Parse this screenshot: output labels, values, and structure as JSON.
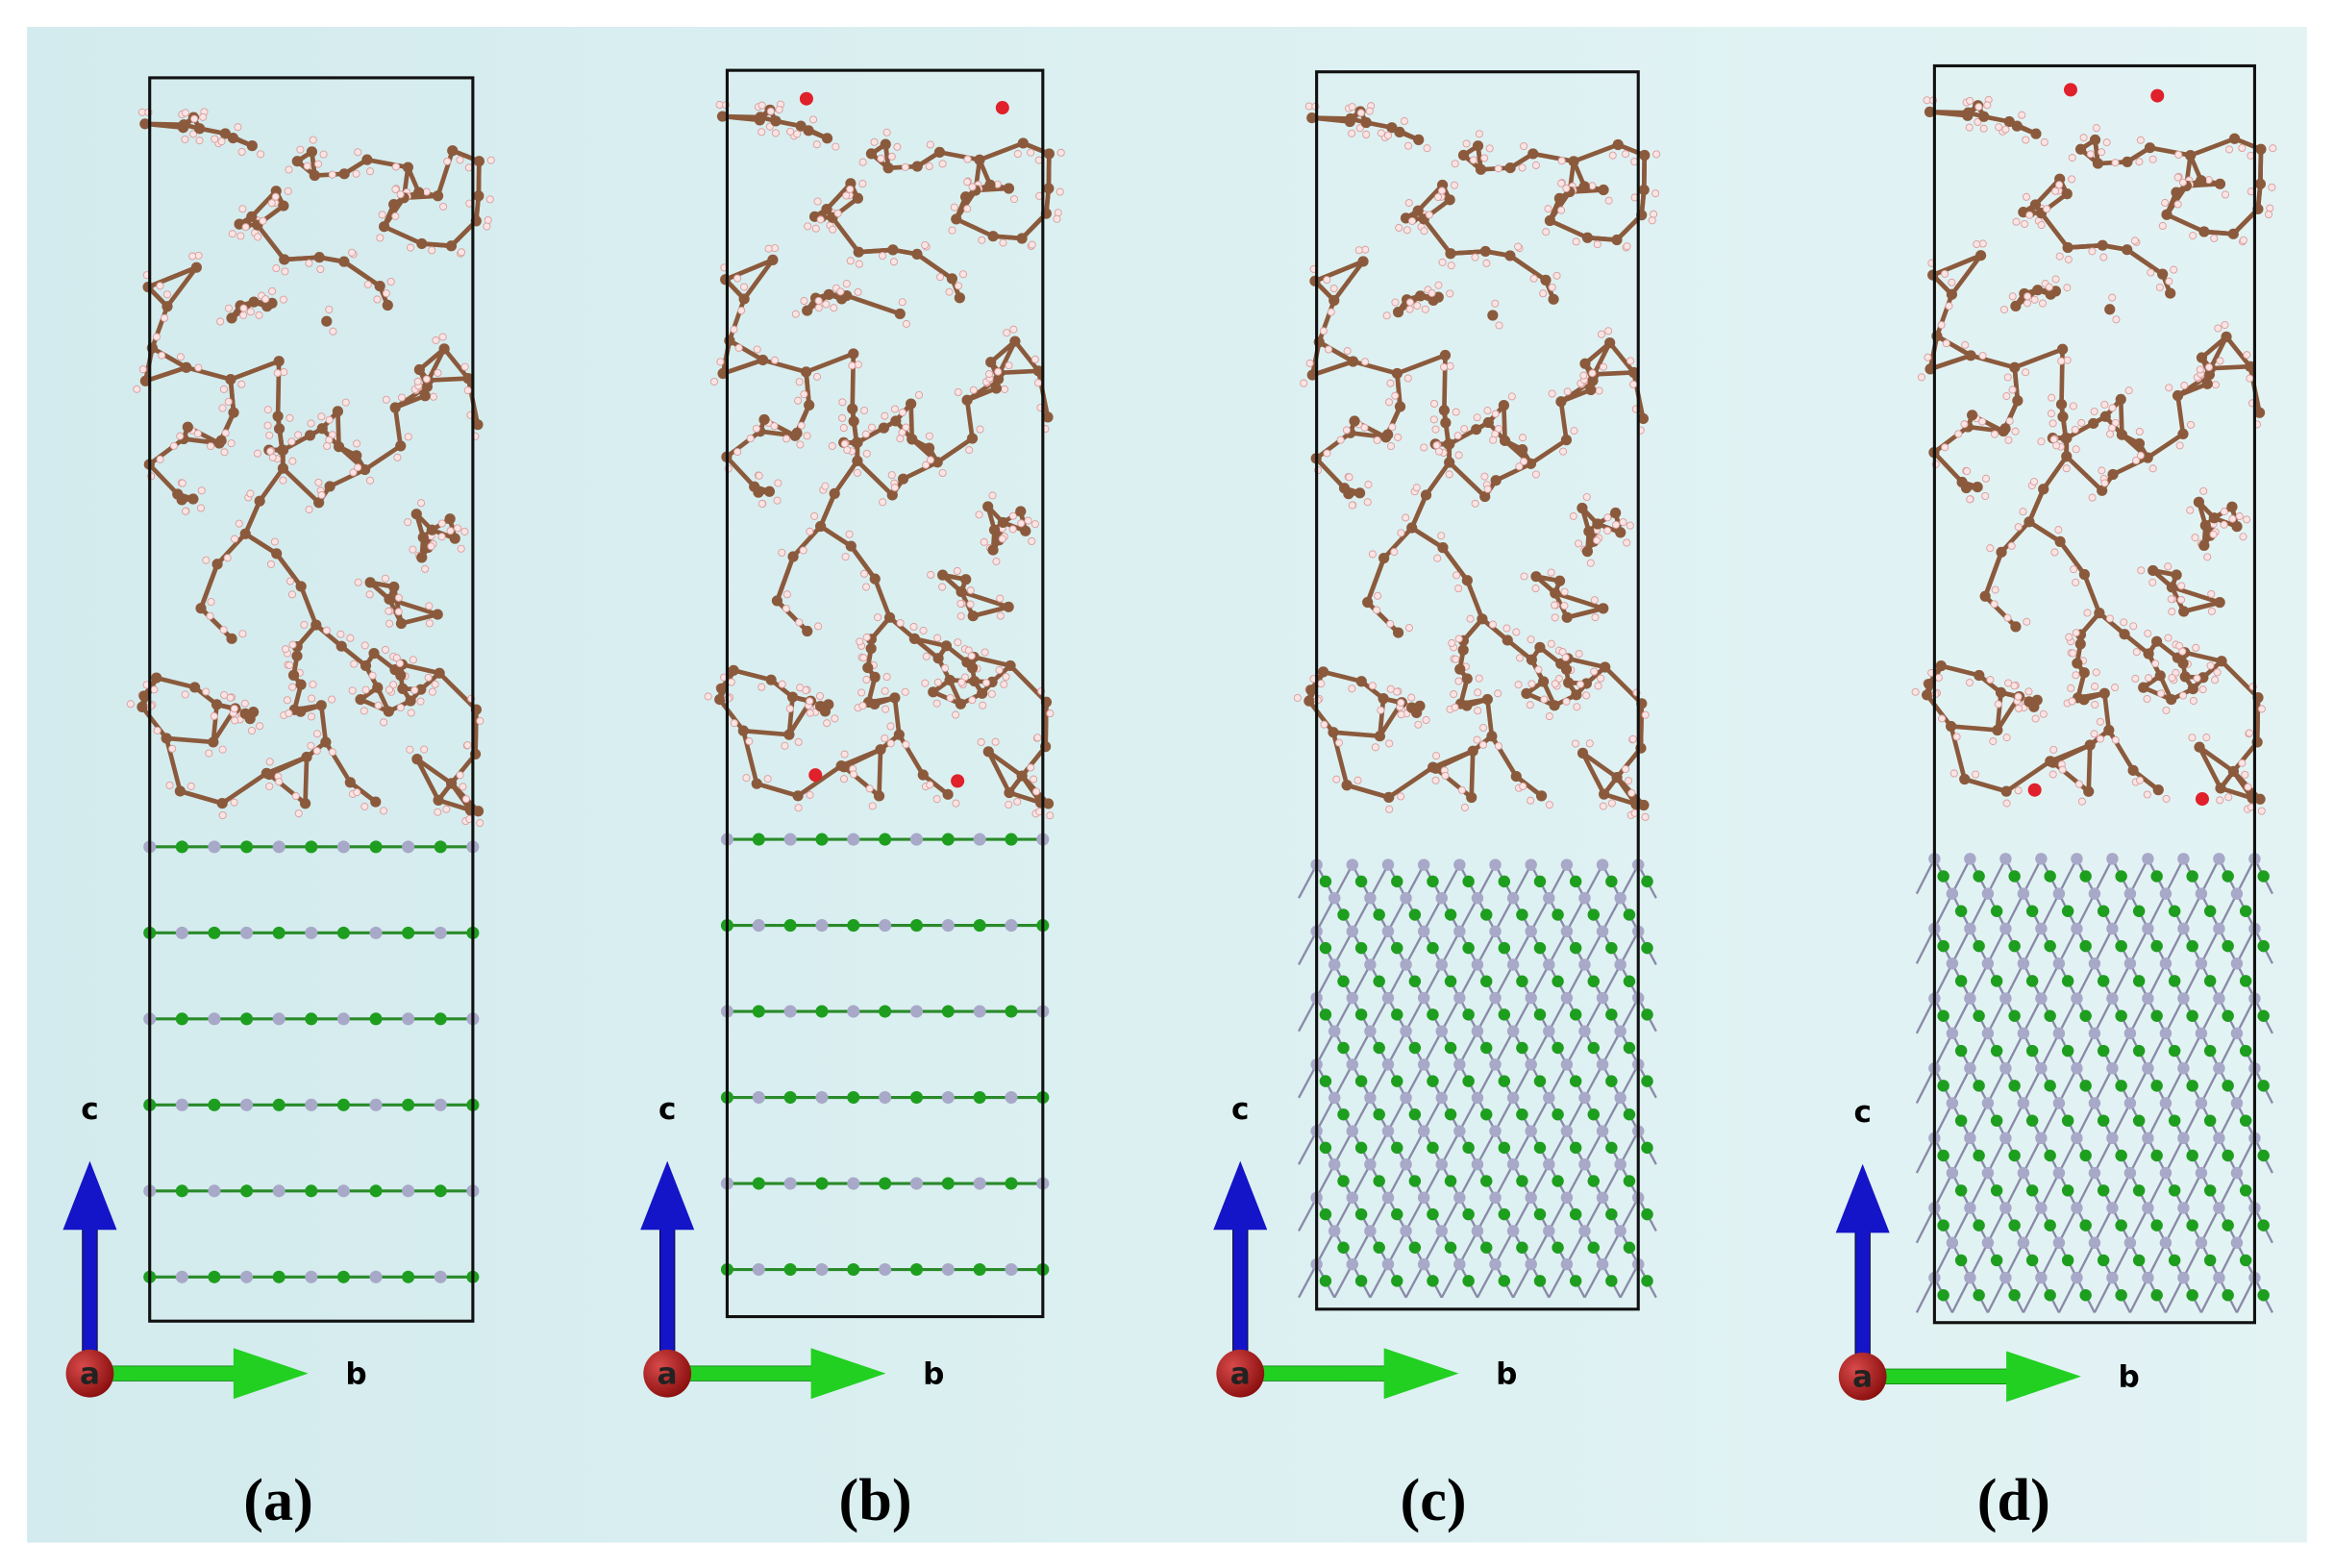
{
  "panels": [
    {
      "caption": "(a)",
      "axes": {
        "a": "a",
        "b": "b",
        "c": "c"
      }
    },
    {
      "caption": "(b)",
      "axes": {
        "a": "a",
        "b": "b",
        "c": "c"
      }
    },
    {
      "caption": "(c)",
      "axes": {
        "a": "a",
        "b": "b",
        "c": "c"
      }
    },
    {
      "caption": "(d)",
      "axes": {
        "a": "a",
        "b": "b",
        "c": "c"
      }
    }
  ]
}
